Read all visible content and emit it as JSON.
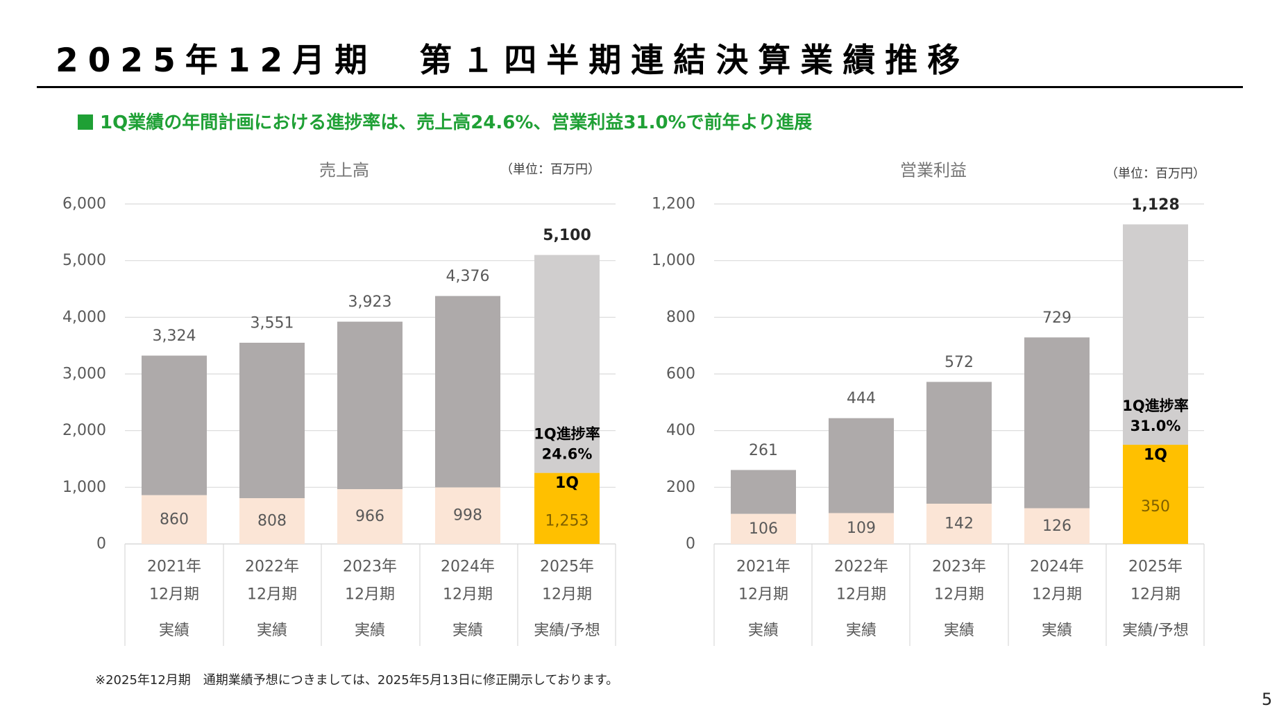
{
  "title": "2025年12月期　第１四半期連結決算業績推移",
  "subtitle": "1Q業績の年間計画における進捗率は、売上高24.6%、営業利益31.0%で前年より進展",
  "footnote": "※2025年12月期　通期業績予想につきましては、2025年5月13日に修正開示しております。",
  "page_number": "5",
  "colors": {
    "actual_total": "#aeaaaa",
    "q1_past": "#fbe5d6",
    "forecast_total": "#d0cece",
    "q1_current": "#ffc000",
    "accent": "#1fa035",
    "grid": "#d9d9d9"
  },
  "chart_data": [
    {
      "type": "bar",
      "stacked": true,
      "title": "売上高",
      "unit": "（単位：百万円）",
      "ylim": [
        0,
        6000
      ],
      "yticks": [
        "0",
        "1,000",
        "2,000",
        "3,000",
        "4,000",
        "5,000",
        "6,000"
      ],
      "ytick_values": [
        0,
        1000,
        2000,
        3000,
        4000,
        5000,
        6000
      ],
      "grid": true,
      "categories": [
        {
          "year": "2021年",
          "period": "12月期",
          "kind": "実績"
        },
        {
          "year": "2022年",
          "period": "12月期",
          "kind": "実績"
        },
        {
          "year": "2023年",
          "period": "12月期",
          "kind": "実績"
        },
        {
          "year": "2024年",
          "period": "12月期",
          "kind": "実績"
        },
        {
          "year": "2025年",
          "period": "12月期",
          "kind": "実績/予想"
        }
      ],
      "totals": [
        3324,
        3551,
        3923,
        4376,
        5100
      ],
      "total_labels": [
        "3,324",
        "3,551",
        "3,923",
        "4,376",
        "5,100"
      ],
      "q1": [
        860,
        808,
        966,
        998,
        1253
      ],
      "q1_labels": [
        "860",
        "808",
        "966",
        "998",
        "1,253"
      ],
      "q1_tag": "1Q",
      "progress_label": "1Q進捗率",
      "progress_value": "24.6%"
    },
    {
      "type": "bar",
      "stacked": true,
      "title": "営業利益",
      "unit": "（単位：百万円）",
      "ylim": [
        0,
        1200
      ],
      "yticks": [
        "0",
        "200",
        "400",
        "600",
        "800",
        "1,000",
        "1,200"
      ],
      "ytick_values": [
        0,
        200,
        400,
        600,
        800,
        1000,
        1200
      ],
      "grid": true,
      "categories": [
        {
          "year": "2021年",
          "period": "12月期",
          "kind": "実績"
        },
        {
          "year": "2022年",
          "period": "12月期",
          "kind": "実績"
        },
        {
          "year": "2023年",
          "period": "12月期",
          "kind": "実績"
        },
        {
          "year": "2024年",
          "period": "12月期",
          "kind": "実績"
        },
        {
          "year": "2025年",
          "period": "12月期",
          "kind": "実績/予想"
        }
      ],
      "totals": [
        261,
        444,
        572,
        729,
        1128
      ],
      "total_labels": [
        "261",
        "444",
        "572",
        "729",
        "1,128"
      ],
      "q1": [
        106,
        109,
        142,
        126,
        350
      ],
      "q1_labels": [
        "106",
        "109",
        "142",
        "126",
        "350"
      ],
      "q1_tag": "1Q",
      "progress_label": "1Q進捗率",
      "progress_value": "31.0%"
    }
  ]
}
